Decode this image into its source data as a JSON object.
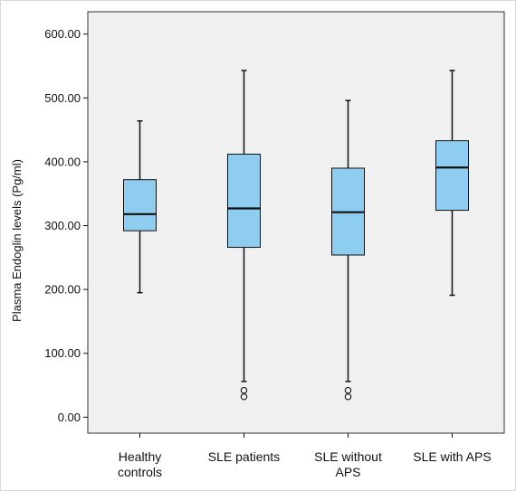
{
  "chart_data": {
    "type": "boxplot",
    "title": "",
    "xlabel": "",
    "ylabel": "Plasma Endoglin levels (Pg/ml)",
    "ylim": [
      -25,
      635
    ],
    "yticks": [
      0,
      100,
      200,
      300,
      400,
      500,
      600
    ],
    "ytick_labels": [
      "0.00",
      "100.00",
      "200.00",
      "300.00",
      "400.00",
      "500.00",
      "600.00"
    ],
    "grid": false,
    "colors": {
      "box_fill": "#8ecdf0",
      "plot_bg": "#f0f0f0",
      "stroke": "#111111"
    },
    "categories": [
      {
        "lines": [
          "Healthy",
          "controls"
        ]
      },
      {
        "lines": [
          "SLE patients"
        ]
      },
      {
        "lines": [
          "SLE without",
          "APS"
        ]
      },
      {
        "lines": [
          "SLE with APS"
        ]
      }
    ],
    "boxes": [
      {
        "min": 195,
        "q1": 292,
        "median": 318,
        "q3": 372,
        "max": 464,
        "outliers": []
      },
      {
        "min": 56,
        "q1": 266,
        "median": 327,
        "q3": 412,
        "max": 543,
        "outliers": [
          42,
          32
        ]
      },
      {
        "min": 56,
        "q1": 254,
        "median": 321,
        "q3": 390,
        "max": 496,
        "outliers": [
          42,
          32
        ]
      },
      {
        "min": 191,
        "q1": 324,
        "median": 391,
        "q3": 433,
        "max": 543,
        "outliers": []
      }
    ]
  }
}
